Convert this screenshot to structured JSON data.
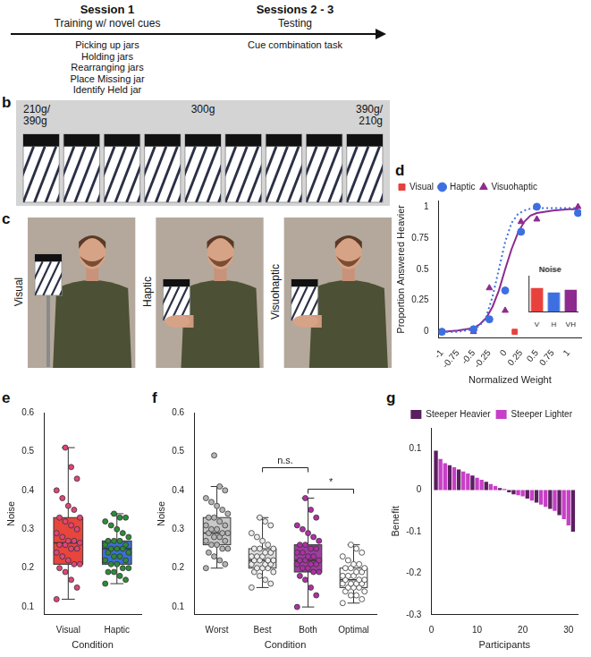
{
  "timeline": {
    "stages": [
      {
        "title": "Session 1",
        "subtitle": "Training w/ novel cues",
        "items": [
          "Picking up jars",
          "Holding jars",
          "Rearranging jars",
          "Place Missing jar",
          "Identify Held jar"
        ]
      },
      {
        "title": "Sessions 2 - 3",
        "subtitle": "Testing",
        "items": [
          "Cue combination task"
        ]
      }
    ]
  },
  "jars": {
    "letter": "b",
    "count": 9,
    "labels": [
      {
        "text": "210g/390g",
        "align": "left"
      },
      {
        "text": "300g",
        "align": "center"
      },
      {
        "text": "390g/210g",
        "align": "right"
      }
    ]
  },
  "photos": {
    "letter": "c",
    "labels": [
      "Visual",
      "Haptic",
      "Visuohaptic"
    ]
  },
  "chart_data": [
    {
      "letter": "d",
      "type": "scatter",
      "xlabel": "Normalized Weight",
      "ylabel": "Proportion Answered Heavier",
      "xlim": [
        -1.05,
        1.2
      ],
      "xticks": [
        -1,
        -0.75,
        -0.5,
        -0.25,
        0,
        0.25,
        0.5,
        0.75,
        1
      ],
      "ylim": [
        -0.05,
        1.05
      ],
      "yticks": [
        0,
        0.25,
        0.5,
        0.75,
        1
      ],
      "grid": false,
      "legend": "top-left",
      "series": [
        {
          "name": "Visual",
          "color": "#e8413c",
          "marker": "square",
          "x": [
            0.15
          ],
          "values": [
            0
          ]
        },
        {
          "name": "Haptic",
          "color": "#3d6fe0",
          "marker": "circle",
          "line_style": "dotted",
          "x": [
            -1,
            -0.5,
            -0.25,
            0,
            0.25,
            0.5,
            1.15
          ],
          "values": [
            0,
            0.02,
            0.1,
            0.33,
            0.8,
            1,
            0.95
          ],
          "fit_x": [
            -1,
            -0.75,
            -0.5,
            -0.4,
            -0.3,
            -0.2,
            -0.1,
            0,
            0.1,
            0.2,
            0.3,
            0.4,
            0.5,
            0.75,
            1,
            1.15
          ],
          "fit_values": [
            0,
            0,
            0.02,
            0.05,
            0.12,
            0.28,
            0.5,
            0.72,
            0.87,
            0.94,
            0.97,
            0.985,
            0.99,
            0.99,
            0.99,
            0.99
          ]
        },
        {
          "name": "Visuohaptic",
          "color": "#8e2b8e",
          "marker": "triangle",
          "line_style": "solid",
          "x": [
            -1,
            -0.5,
            -0.25,
            0,
            0.25,
            0.5,
            1.15
          ],
          "values": [
            0,
            0,
            0.35,
            0.17,
            0.88,
            0.9,
            1
          ],
          "fit_x": [
            -1,
            -0.75,
            -0.5,
            -0.4,
            -0.3,
            -0.2,
            -0.1,
            0,
            0.1,
            0.2,
            0.3,
            0.4,
            0.5,
            0.75,
            1,
            1.15
          ],
          "fit_values": [
            0,
            0.01,
            0.03,
            0.06,
            0.11,
            0.2,
            0.33,
            0.5,
            0.66,
            0.79,
            0.88,
            0.93,
            0.95,
            0.97,
            0.98,
            0.98
          ]
        }
      ],
      "inset": {
        "type": "bar",
        "title": "Noise",
        "categories": [
          "V",
          "H",
          "VH"
        ],
        "values": [
          0.27,
          0.22,
          0.25
        ],
        "colors": [
          "#e8413c",
          "#3d6fe0",
          "#8e2b8e"
        ],
        "ylim": [
          0,
          0.4
        ],
        "tick_labels": "x"
      }
    },
    {
      "letter": "e",
      "type": "box",
      "xlabel": "Condition",
      "ylabel": "Noise",
      "categories": [
        "Visual",
        "Haptic"
      ],
      "ylim": [
        0.08,
        0.6
      ],
      "yticks": [
        0.1,
        0.2,
        0.3,
        0.4,
        0.5,
        0.6
      ],
      "grid": false,
      "boxes": [
        {
          "category": "Visual",
          "min": 0.12,
          "q1": 0.21,
          "median": 0.265,
          "q3": 0.33,
          "max": 0.51,
          "color": "#e8453c"
        },
        {
          "category": "Haptic",
          "min": 0.16,
          "q1": 0.21,
          "median": 0.25,
          "q3": 0.27,
          "max": 0.34,
          "color": "#3b6fd8"
        }
      ],
      "points": [
        {
          "category": "Visual",
          "color": "#e0457b",
          "values": [
            0.12,
            0.15,
            0.17,
            0.19,
            0.2,
            0.21,
            0.21,
            0.22,
            0.23,
            0.24,
            0.25,
            0.25,
            0.26,
            0.26,
            0.265,
            0.27,
            0.27,
            0.28,
            0.29,
            0.3,
            0.31,
            0.32,
            0.33,
            0.33,
            0.35,
            0.36,
            0.38,
            0.4,
            0.43,
            0.46,
            0.51
          ]
        },
        {
          "category": "Haptic",
          "color": "#2e8b3a",
          "values": [
            0.16,
            0.17,
            0.18,
            0.19,
            0.19,
            0.2,
            0.2,
            0.21,
            0.21,
            0.22,
            0.22,
            0.23,
            0.23,
            0.24,
            0.24,
            0.25,
            0.25,
            0.25,
            0.26,
            0.26,
            0.27,
            0.27,
            0.27,
            0.28,
            0.29,
            0.3,
            0.31,
            0.32,
            0.33,
            0.33,
            0.34
          ]
        }
      ]
    },
    {
      "letter": "f",
      "type": "box",
      "xlabel": "Condition",
      "ylabel": "Noise",
      "categories": [
        "Worst",
        "Best",
        "Both",
        "Optimal"
      ],
      "ylim": [
        0.08,
        0.6
      ],
      "yticks": [
        0.1,
        0.2,
        0.3,
        0.4,
        0.5,
        0.6
      ],
      "grid": false,
      "boxes": [
        {
          "category": "Worst",
          "min": 0.2,
          "q1": 0.26,
          "median": 0.29,
          "q3": 0.33,
          "max": 0.41,
          "color": "#c8c8c8"
        },
        {
          "category": "Best",
          "min": 0.15,
          "q1": 0.2,
          "median": 0.22,
          "q3": 0.25,
          "max": 0.33,
          "color": "#dedede"
        },
        {
          "category": "Both",
          "min": 0.1,
          "q1": 0.19,
          "median": 0.22,
          "q3": 0.26,
          "max": 0.38,
          "color": "#9b3f9e"
        },
        {
          "category": "Optimal",
          "min": 0.11,
          "q1": 0.15,
          "median": 0.17,
          "q3": 0.2,
          "max": 0.26,
          "color": "#ffffff"
        }
      ],
      "points": [
        {
          "category": "Worst",
          "color": "#b5b5b5",
          "values": [
            0.2,
            0.21,
            0.22,
            0.23,
            0.24,
            0.25,
            0.25,
            0.26,
            0.26,
            0.27,
            0.27,
            0.28,
            0.28,
            0.29,
            0.29,
            0.29,
            0.3,
            0.3,
            0.31,
            0.31,
            0.32,
            0.33,
            0.33,
            0.34,
            0.35,
            0.36,
            0.37,
            0.38,
            0.4,
            0.41,
            0.49
          ]
        },
        {
          "category": "Best",
          "color": "#ececec",
          "values": [
            0.15,
            0.16,
            0.17,
            0.18,
            0.19,
            0.19,
            0.2,
            0.2,
            0.2,
            0.21,
            0.21,
            0.21,
            0.22,
            0.22,
            0.22,
            0.22,
            0.23,
            0.23,
            0.23,
            0.24,
            0.24,
            0.25,
            0.25,
            0.25,
            0.26,
            0.27,
            0.28,
            0.29,
            0.31,
            0.32,
            0.33
          ]
        },
        {
          "category": "Both",
          "color": "#b02fa6",
          "values": [
            0.1,
            0.13,
            0.15,
            0.17,
            0.18,
            0.19,
            0.19,
            0.2,
            0.2,
            0.21,
            0.21,
            0.21,
            0.22,
            0.22,
            0.22,
            0.23,
            0.23,
            0.24,
            0.24,
            0.25,
            0.25,
            0.26,
            0.26,
            0.27,
            0.28,
            0.29,
            0.3,
            0.31,
            0.33,
            0.35,
            0.38
          ]
        },
        {
          "category": "Optimal",
          "color": "#ffffff",
          "values": [
            0.11,
            0.12,
            0.13,
            0.13,
            0.14,
            0.14,
            0.15,
            0.15,
            0.15,
            0.16,
            0.16,
            0.16,
            0.16,
            0.17,
            0.17,
            0.17,
            0.18,
            0.18,
            0.18,
            0.19,
            0.19,
            0.2,
            0.2,
            0.2,
            0.21,
            0.21,
            0.22,
            0.23,
            0.24,
            0.25,
            0.26
          ]
        }
      ],
      "annotations": [
        {
          "text": "*",
          "from": "Both",
          "to": "Optimal"
        },
        {
          "text": "n.s.",
          "from": "Best",
          "to": "Both"
        }
      ]
    },
    {
      "letter": "g",
      "type": "bar",
      "xlabel": "Participants",
      "ylabel": "Benefit",
      "xlim": [
        0,
        32
      ],
      "xticks": [
        0,
        10,
        20,
        30
      ],
      "ylim": [
        -0.3,
        0.15
      ],
      "yticks": [
        -0.3,
        -0.2,
        -0.1,
        0,
        0.1
      ],
      "grid": false,
      "legend": "top-right",
      "series": [
        {
          "name": "Steeper Heavier",
          "color": "#5a1f5e",
          "x": [
            1,
            4,
            6,
            9,
            12,
            15,
            17,
            18,
            21,
            23,
            26,
            28,
            31
          ],
          "values": [
            0.095,
            0.06,
            0.05,
            0.035,
            0.02,
            0.005,
            -0.005,
            -0.01,
            -0.02,
            -0.03,
            -0.045,
            -0.06,
            -0.1
          ]
        },
        {
          "name": "Steeper Lighter",
          "color": "#c73fc7",
          "x": [
            2,
            3,
            5,
            7,
            8,
            10,
            11,
            13,
            14,
            16,
            19,
            20,
            22,
            24,
            25,
            27,
            29,
            30
          ],
          "values": [
            0.075,
            0.065,
            0.055,
            0.045,
            0.04,
            0.03,
            0.025,
            0.015,
            0.01,
            0.003,
            -0.012,
            -0.015,
            -0.025,
            -0.035,
            -0.04,
            -0.05,
            -0.07,
            -0.085
          ]
        }
      ]
    }
  ]
}
